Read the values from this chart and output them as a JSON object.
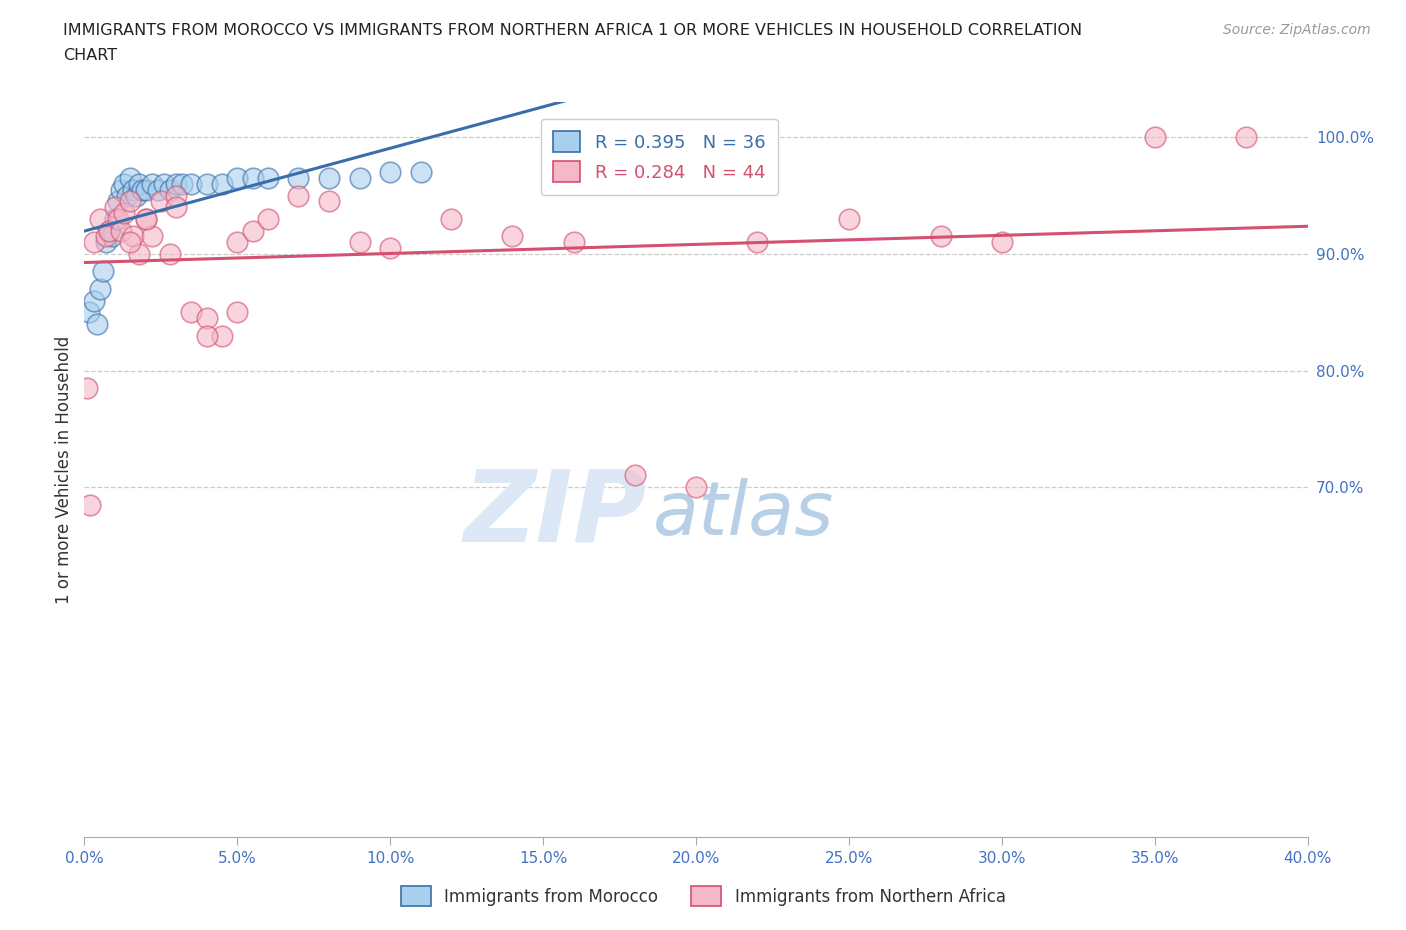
{
  "title_line1": "IMMIGRANTS FROM MOROCCO VS IMMIGRANTS FROM NORTHERN AFRICA 1 OR MORE VEHICLES IN HOUSEHOLD CORRELATION",
  "title_line2": "CHART",
  "source": "Source: ZipAtlas.com",
  "ylabel": "1 or more Vehicles in Household",
  "xlim": [
    0.0,
    40.0
  ],
  "ylim": [
    40.0,
    103.0
  ],
  "ytick_vals": [
    70.0,
    80.0,
    90.0,
    100.0
  ],
  "xticks": [
    0.0,
    5.0,
    10.0,
    15.0,
    20.0,
    25.0,
    30.0,
    35.0,
    40.0
  ],
  "legend_labels": [
    "Immigrants from Morocco",
    "Immigrants from Northern Africa"
  ],
  "morocco_color": "#a8d0ee",
  "northern_africa_color": "#f4b8c8",
  "trend_blue": "#3a6eaa",
  "trend_pink": "#d45070",
  "watermark_zip": "ZIP",
  "watermark_atlas": "atlas",
  "watermark_color_zip": "#dce8f5",
  "watermark_color_atlas": "#b8cfe8",
  "background_color": "#ffffff",
  "grid_color": "#cccccc",
  "title_color": "#222222",
  "tick_color": "#4472c4",
  "R_morocco": 0.395,
  "N_morocco": 36,
  "R_northern": 0.284,
  "N_northern": 44,
  "morocco_x": [
    0.15,
    0.3,
    0.4,
    0.5,
    0.6,
    0.7,
    0.8,
    0.9,
    1.0,
    1.1,
    1.2,
    1.3,
    1.4,
    1.5,
    1.6,
    1.7,
    1.8,
    1.9,
    2.0,
    2.2,
    2.4,
    2.6,
    2.8,
    3.0,
    3.2,
    3.5,
    4.0,
    4.5,
    5.0,
    5.5,
    6.0,
    7.0,
    8.0,
    9.0,
    10.0,
    11.0
  ],
  "morocco_y": [
    85.0,
    86.0,
    84.0,
    87.0,
    88.5,
    91.0,
    92.0,
    91.5,
    93.0,
    94.5,
    95.5,
    96.0,
    95.0,
    96.5,
    95.5,
    95.0,
    96.0,
    95.5,
    95.5,
    96.0,
    95.5,
    96.0,
    95.5,
    96.0,
    96.0,
    96.0,
    96.0,
    96.0,
    96.5,
    96.5,
    96.5,
    96.5,
    96.5,
    96.5,
    97.0,
    97.0
  ],
  "northern_africa_x": [
    0.1,
    0.2,
    0.3,
    0.5,
    0.7,
    0.8,
    1.0,
    1.1,
    1.2,
    1.3,
    1.5,
    1.6,
    1.8,
    2.0,
    2.2,
    2.5,
    2.8,
    3.0,
    3.5,
    4.0,
    4.5,
    5.0,
    5.5,
    6.0,
    7.0,
    8.0,
    9.0,
    10.0,
    12.0,
    14.0,
    16.0,
    18.0,
    20.0,
    22.0,
    25.0,
    28.0,
    30.0,
    35.0,
    38.0,
    1.5,
    2.0,
    3.0,
    4.0,
    5.0
  ],
  "northern_africa_y": [
    78.5,
    68.5,
    91.0,
    93.0,
    91.5,
    92.0,
    94.0,
    93.0,
    92.0,
    93.5,
    94.5,
    91.5,
    90.0,
    93.0,
    91.5,
    94.5,
    90.0,
    95.0,
    85.0,
    84.5,
    83.0,
    91.0,
    92.0,
    93.0,
    95.0,
    94.5,
    91.0,
    90.5,
    93.0,
    91.5,
    91.0,
    71.0,
    70.0,
    91.0,
    93.0,
    91.5,
    91.0,
    100.0,
    100.0,
    91.0,
    93.0,
    94.0,
    83.0,
    85.0
  ]
}
